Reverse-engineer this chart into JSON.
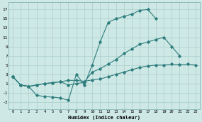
{
  "background_color": "#cde8e5",
  "grid_color": "#aacfcc",
  "line_color": "#2d7d7d",
  "ylabel_values": [
    -3,
    -1,
    1,
    3,
    5,
    7,
    9,
    11,
    13,
    15,
    17
  ],
  "xlabel_values": [
    0,
    1,
    2,
    3,
    4,
    5,
    6,
    7,
    8,
    9,
    10,
    11,
    12,
    13,
    14,
    15,
    16,
    17,
    18,
    19,
    20,
    21,
    22,
    23
  ],
  "xlabel": "Humidex (Indice chaleur)",
  "xlim": [
    -0.5,
    23.5
  ],
  "ylim": [
    -4.5,
    18.5
  ],
  "line1_x": [
    0,
    1,
    2,
    3,
    4,
    5,
    6,
    7,
    8,
    9,
    10,
    11,
    12,
    13,
    14,
    15,
    16,
    17,
    18
  ],
  "line1_y": [
    2.5,
    0.7,
    0.4,
    -1.5,
    -1.8,
    -1.9,
    -2.1,
    -2.6,
    3.0,
    0.7,
    5.0,
    10.0,
    14.2,
    15.0,
    15.5,
    16.0,
    16.8,
    17.0,
    15.0
  ],
  "line2_x": [
    0,
    1,
    2,
    3,
    4,
    5,
    6,
    7,
    8,
    9,
    10,
    11,
    12,
    13,
    14,
    15,
    16,
    17,
    18,
    19,
    20,
    21
  ],
  "line2_y": [
    2.5,
    0.7,
    0.4,
    0.7,
    1.0,
    1.2,
    1.4,
    0.7,
    1.0,
    1.3,
    3.5,
    4.2,
    5.2,
    6.2,
    7.5,
    8.5,
    9.5,
    10.0,
    10.5,
    11.0,
    9.0,
    7.0
  ],
  "line3_x": [
    0,
    1,
    2,
    3,
    4,
    5,
    6,
    7,
    8,
    9,
    10,
    11,
    12,
    13,
    14,
    15,
    16,
    17,
    18,
    19,
    20,
    21,
    22,
    23
  ],
  "line3_y": [
    2.5,
    0.7,
    0.4,
    0.7,
    1.0,
    1.2,
    1.4,
    1.7,
    1.7,
    1.5,
    1.8,
    2.0,
    2.5,
    3.0,
    3.5,
    4.0,
    4.5,
    4.8,
    5.0,
    5.0,
    5.2,
    5.1,
    5.2,
    5.0
  ]
}
